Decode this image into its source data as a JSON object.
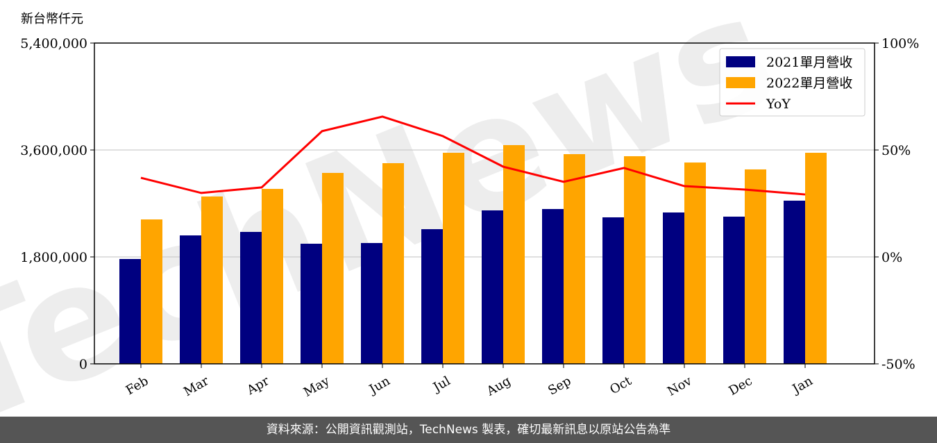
{
  "chart_data": {
    "type": "bar",
    "ylabel": "新台幣仟元",
    "categories": [
      "Feb",
      "Mar",
      "Apr",
      "May",
      "Jun",
      "Jul",
      "Aug",
      "Sep",
      "Oct",
      "Nov",
      "Dec",
      "Jan"
    ],
    "series": [
      {
        "name": "2021單月營收",
        "type": "bar",
        "axis": "left",
        "color": "#000080",
        "values": [
          1765000,
          2162000,
          2221000,
          2022000,
          2034000,
          2267000,
          2583000,
          2606000,
          2466000,
          2548000,
          2478000,
          2747000
        ]
      },
      {
        "name": "2022單月營收",
        "type": "bar",
        "axis": "left",
        "color": "#FFA500",
        "values": [
          2431000,
          2817000,
          2945000,
          3214000,
          3378000,
          3553000,
          3682000,
          3530000,
          3495000,
          3389000,
          3273000,
          3553000
        ]
      },
      {
        "name": "YoY",
        "type": "line",
        "axis": "right",
        "color": "#FF0000",
        "values": [
          37.0,
          29.9,
          32.5,
          58.8,
          65.6,
          56.5,
          42.2,
          35.1,
          41.6,
          33.1,
          31.5,
          29.2
        ]
      }
    ],
    "ylim": [
      0,
      5400000
    ],
    "y2lim": [
      -50,
      100
    ],
    "yticks": [
      "0",
      "1,800,000",
      "3,600,000",
      "5,400,000"
    ],
    "y2ticks": [
      "-50%",
      "0%",
      "50%",
      "100%"
    ],
    "grid": true,
    "legend_placement": "top-right"
  },
  "footer": "資料來源：公開資訊觀測站，TechNews 製表，確切最新訊息以原站公告為準",
  "watermark": "TechNews"
}
